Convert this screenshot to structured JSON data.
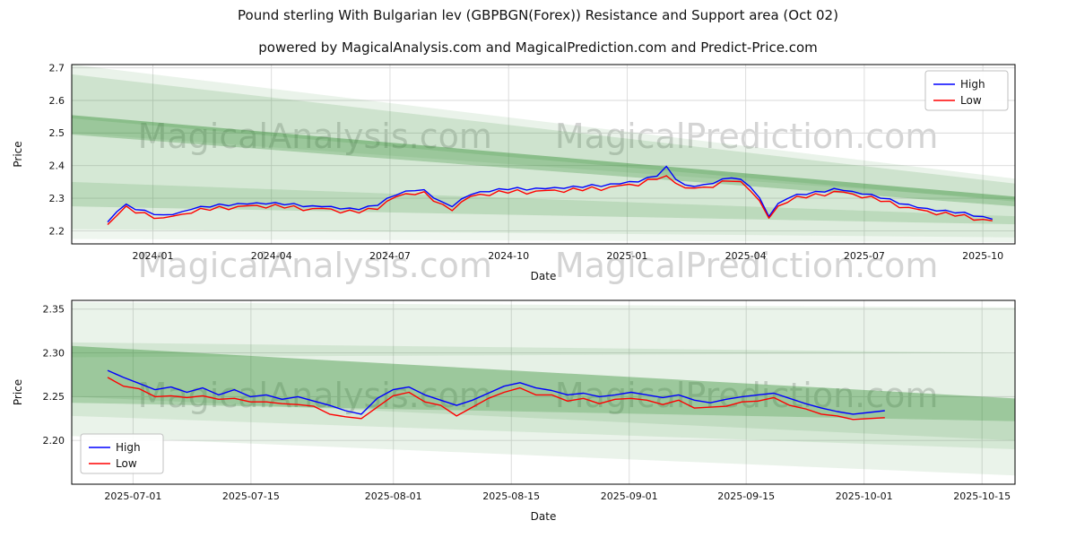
{
  "title": "Pound sterling With Bulgarian lev (GBPBGN(Forex)) Resistance and Support area (Oct 02)",
  "subtitle": "powered by MagicalAnalysis.com and MagicalPrediction.com and Predict-Price.com",
  "watermarks": [
    "MagicalAnalysis.com",
    "MagicalPrediction.com"
  ],
  "colors": {
    "band_green": "#2e8b2e",
    "grid": "#d9d9d9",
    "spine": "#000000",
    "tick_text": "#111111",
    "high_line": "#0000ff",
    "low_line": "#ff0000",
    "legend_border": "#c0c0c0"
  },
  "chart_data": [
    {
      "type": "line",
      "xlabel": "Date",
      "ylabel": "Price",
      "ylim": [
        2.16,
        2.71
      ],
      "grid": true,
      "legend_position": "upper right",
      "legend_entries": [
        "High",
        "Low"
      ],
      "x_ticks": [
        {
          "t": 0.086,
          "label": "2024-01"
        },
        {
          "t": 0.2117,
          "label": "2024-04"
        },
        {
          "t": 0.3374,
          "label": "2024-07"
        },
        {
          "t": 0.4631,
          "label": "2024-10"
        },
        {
          "t": 0.5888,
          "label": "2025-01"
        },
        {
          "t": 0.7145,
          "label": "2025-04"
        },
        {
          "t": 0.8402,
          "label": "2025-07"
        },
        {
          "t": 0.9659,
          "label": "2025-10"
        }
      ],
      "y_ticks": [
        {
          "v": 2.2,
          "label": "2.2"
        },
        {
          "v": 2.3,
          "label": "2.3"
        },
        {
          "v": 2.4,
          "label": "2.4"
        },
        {
          "v": 2.5,
          "label": "2.5"
        },
        {
          "v": 2.6,
          "label": "2.6"
        },
        {
          "v": 2.7,
          "label": "2.7"
        }
      ],
      "bands": [
        {
          "left": [
            2.5,
            2.71
          ],
          "right": [
            2.295,
            2.36
          ],
          "alpha": 0.1
        },
        {
          "left": [
            2.545,
            2.68
          ],
          "right": [
            2.29,
            2.345
          ],
          "alpha": 0.15
        },
        {
          "left": [
            2.495,
            2.555
          ],
          "right": [
            2.275,
            2.305
          ],
          "alpha": 0.42
        },
        {
          "left": [
            2.35,
            2.495
          ],
          "right": [
            2.245,
            2.275
          ],
          "alpha": 0.2
        },
        {
          "left": [
            2.275,
            2.35
          ],
          "right": [
            2.22,
            2.245
          ],
          "alpha": 0.32
        },
        {
          "left": [
            2.205,
            2.275
          ],
          "right": [
            2.18,
            2.22
          ],
          "alpha": 0.16
        },
        {
          "left": [
            2.175,
            2.205
          ],
          "right": [
            2.165,
            2.18
          ],
          "alpha": 0.08
        }
      ],
      "series": [
        {
          "name": "High",
          "color": "#0000ff",
          "t0": 0.038,
          "t1": 0.976,
          "values": [
            2.227,
            2.259,
            2.282,
            2.265,
            2.263,
            2.25,
            2.249,
            2.25,
            2.259,
            2.266,
            2.275,
            2.273,
            2.282,
            2.277,
            2.284,
            2.282,
            2.286,
            2.282,
            2.287,
            2.28,
            2.284,
            2.274,
            2.277,
            2.274,
            2.275,
            2.267,
            2.27,
            2.265,
            2.276,
            2.278,
            2.3,
            2.31,
            2.322,
            2.323,
            2.326,
            2.301,
            2.288,
            2.274,
            2.298,
            2.311,
            2.32,
            2.32,
            2.329,
            2.326,
            2.333,
            2.325,
            2.331,
            2.329,
            2.333,
            2.33,
            2.337,
            2.333,
            2.342,
            2.336,
            2.344,
            2.344,
            2.351,
            2.35,
            2.364,
            2.368,
            2.398,
            2.358,
            2.341,
            2.336,
            2.342,
            2.345,
            2.359,
            2.362,
            2.358,
            2.335,
            2.301,
            2.244,
            2.284,
            2.299,
            2.312,
            2.311,
            2.321,
            2.319,
            2.33,
            2.324,
            2.321,
            2.313,
            2.312,
            2.3,
            2.298,
            2.283,
            2.281,
            2.271,
            2.269,
            2.261,
            2.263,
            2.255,
            2.257,
            2.245,
            2.244,
            2.236
          ]
        },
        {
          "name": "Low",
          "color": "#ff0000",
          "t0": 0.038,
          "t1": 0.976,
          "values": [
            2.219,
            2.247,
            2.276,
            2.255,
            2.256,
            2.238,
            2.24,
            2.245,
            2.251,
            2.254,
            2.269,
            2.263,
            2.275,
            2.265,
            2.275,
            2.277,
            2.278,
            2.27,
            2.281,
            2.27,
            2.277,
            2.262,
            2.268,
            2.269,
            2.267,
            2.255,
            2.264,
            2.255,
            2.269,
            2.266,
            2.291,
            2.305,
            2.314,
            2.311,
            2.32,
            2.291,
            2.281,
            2.262,
            2.289,
            2.306,
            2.312,
            2.308,
            2.323,
            2.316,
            2.326,
            2.313,
            2.322,
            2.324,
            2.325,
            2.318,
            2.331,
            2.323,
            2.335,
            2.324,
            2.335,
            2.339,
            2.343,
            2.338,
            2.358,
            2.358,
            2.369,
            2.346,
            2.332,
            2.331,
            2.334,
            2.333,
            2.353,
            2.352,
            2.351,
            2.323,
            2.292,
            2.239,
            2.276,
            2.287,
            2.306,
            2.301,
            2.314,
            2.307,
            2.321,
            2.319,
            2.313,
            2.301,
            2.306,
            2.29,
            2.291,
            2.271,
            2.272,
            2.266,
            2.261,
            2.249,
            2.257,
            2.245,
            2.25,
            2.233,
            2.235,
            2.231
          ]
        }
      ]
    },
    {
      "type": "line",
      "xlabel": "Date",
      "ylabel": "Price",
      "ylim": [
        2.15,
        2.36
      ],
      "grid": true,
      "legend_position": "lower left",
      "legend_entries": [
        "High",
        "Low"
      ],
      "x_ticks": [
        {
          "t": 0.065,
          "label": "2025-07-01"
        },
        {
          "t": 0.19,
          "label": "2025-07-15"
        },
        {
          "t": 0.341,
          "label": "2025-08-01"
        },
        {
          "t": 0.466,
          "label": "2025-08-15"
        },
        {
          "t": 0.591,
          "label": "2025-09-01"
        },
        {
          "t": 0.715,
          "label": "2025-09-15"
        },
        {
          "t": 0.84,
          "label": "2025-10-01"
        },
        {
          "t": 0.965,
          "label": "2025-10-15"
        }
      ],
      "y_ticks": [
        {
          "v": 2.2,
          "label": "2.20"
        },
        {
          "v": 2.25,
          "label": "2.25"
        },
        {
          "v": 2.3,
          "label": "2.30"
        },
        {
          "v": 2.35,
          "label": "2.35"
        }
      ],
      "bands": [
        {
          "left": [
            2.295,
            2.358
          ],
          "right": [
            2.3,
            2.352
          ],
          "alpha": 0.1
        },
        {
          "left": [
            2.25,
            2.312
          ],
          "right": [
            2.2,
            2.3
          ],
          "alpha": 0.12
        },
        {
          "left": [
            2.243,
            2.308
          ],
          "right": [
            2.222,
            2.248
          ],
          "alpha": 0.4
        },
        {
          "left": [
            2.228,
            2.243
          ],
          "right": [
            2.19,
            2.222
          ],
          "alpha": 0.2
        },
        {
          "left": [
            2.205,
            2.228
          ],
          "right": [
            2.16,
            2.19
          ],
          "alpha": 0.1
        }
      ],
      "series": [
        {
          "name": "High",
          "color": "#0000ff",
          "t0": 0.038,
          "t1": 0.862,
          "values": [
            2.28,
            2.272,
            2.265,
            2.258,
            2.261,
            2.255,
            2.26,
            2.252,
            2.258,
            2.25,
            2.252,
            2.247,
            2.25,
            2.245,
            2.24,
            2.234,
            2.23,
            2.248,
            2.258,
            2.261,
            2.252,
            2.246,
            2.24,
            2.246,
            2.254,
            2.262,
            2.266,
            2.26,
            2.257,
            2.252,
            2.254,
            2.25,
            2.252,
            2.255,
            2.252,
            2.249,
            2.252,
            2.246,
            2.243,
            2.247,
            2.25,
            2.252,
            2.254,
            2.248,
            2.242,
            2.237,
            2.233,
            2.23,
            2.232,
            2.234
          ]
        },
        {
          "name": "Low",
          "color": "#ff0000",
          "t0": 0.038,
          "t1": 0.862,
          "values": [
            2.272,
            2.262,
            2.259,
            2.25,
            2.251,
            2.249,
            2.251,
            2.247,
            2.248,
            2.244,
            2.244,
            2.242,
            2.241,
            2.239,
            2.23,
            2.227,
            2.225,
            2.238,
            2.251,
            2.255,
            2.244,
            2.24,
            2.228,
            2.238,
            2.248,
            2.255,
            2.26,
            2.252,
            2.252,
            2.245,
            2.248,
            2.242,
            2.247,
            2.248,
            2.246,
            2.241,
            2.246,
            2.237,
            2.238,
            2.239,
            2.244,
            2.245,
            2.249,
            2.24,
            2.236,
            2.23,
            2.228,
            2.224,
            2.225,
            2.226
          ]
        }
      ]
    }
  ]
}
